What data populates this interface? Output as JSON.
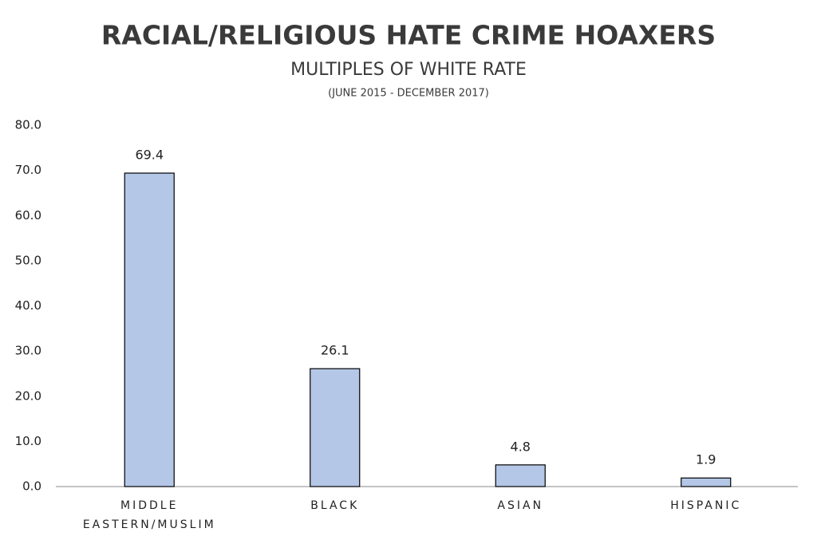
{
  "chart_data": {
    "type": "bar",
    "title": "RACIAL/RELIGIOUS HATE CRIME HOAXERS",
    "subtitle": "MULTIPLES OF WHITE RATE",
    "date_range": "(JUNE 2015 - DECEMBER 2017)",
    "categories": [
      "MIDDLE EASTERN/MUSLIM",
      "BLACK",
      "ASIAN",
      "HISPANIC"
    ],
    "values": [
      69.4,
      26.1,
      4.8,
      1.9
    ],
    "color": "#b4c7e7",
    "ylim": [
      0,
      80
    ],
    "yticks": [
      {
        "value": 0,
        "label": "0.0"
      },
      {
        "value": 10,
        "label": "10.0"
      },
      {
        "value": 20,
        "label": "20.0"
      },
      {
        "value": 30,
        "label": "30.0"
      },
      {
        "value": 40,
        "label": "40.0"
      },
      {
        "value": 50,
        "label": "50.0"
      },
      {
        "value": 60,
        "label": "60.0"
      },
      {
        "value": 70,
        "label": "70.0"
      },
      {
        "value": 80,
        "label": "80.0"
      }
    ],
    "grid": false
  }
}
